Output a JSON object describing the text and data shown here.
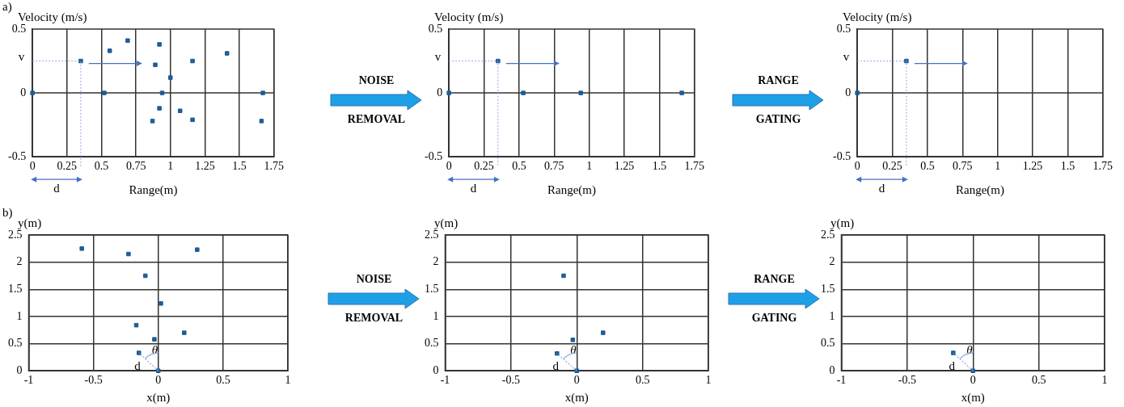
{
  "chart_data": [
    {
      "type": "scatter",
      "xlabel": "Range(m)",
      "ylabel": "Velocity (m/s)",
      "x": [
        0,
        0.35,
        0.52,
        0.56,
        0.69,
        0.92,
        0.89,
        1.0,
        0.94,
        1.16,
        1.41,
        1.67,
        0.92,
        1.07,
        0.87,
        1.16,
        1.66
      ],
      "series": [
        {
          "color": "#1f5c99",
          "values": [
            0,
            0.25,
            0,
            0.33,
            0.41,
            0.38,
            0.22,
            0.12,
            0,
            0.25,
            0.31,
            0,
            -0.12,
            -0.14,
            -0.22,
            -0.21,
            -0.22
          ]
        }
      ],
      "marker": "square",
      "xlim": [
        0,
        1.75
      ],
      "xticks": [
        0,
        0.25,
        0.5,
        0.75,
        1,
        1.25,
        1.5,
        1.75
      ],
      "ylim": [
        -0.5,
        0.5
      ],
      "yticks": [
        -0.5,
        0,
        0.5
      ],
      "grid": "x",
      "ref_lines": [
        {
          "axis": "y",
          "value": 0
        }
      ],
      "annotations": [
        "a)",
        "v",
        "d"
      ]
    },
    {
      "type": "other",
      "annotations": [
        "NOISE",
        "REMOVAL"
      ]
    },
    {
      "type": "scatter",
      "xlabel": "Range(m)",
      "ylabel": "Velocity (m/s)",
      "x": [
        0,
        0.35,
        0.53,
        0.94,
        1.66
      ],
      "series": [
        {
          "color": "#1f5c99",
          "values": [
            0,
            0.25,
            0,
            0,
            0
          ]
        }
      ],
      "marker": "square",
      "xlim": [
        0,
        1.75
      ],
      "xticks": [
        0,
        0.25,
        0.5,
        0.75,
        1,
        1.25,
        1.5,
        1.75
      ],
      "ylim": [
        -0.5,
        0.5
      ],
      "yticks": [
        -0.5,
        0,
        0.5
      ],
      "grid": "x",
      "ref_lines": [
        {
          "axis": "y",
          "value": 0
        }
      ],
      "annotations": [
        "v",
        "d"
      ]
    },
    {
      "type": "other",
      "annotations": [
        "RANGE",
        "GATING"
      ]
    },
    {
      "type": "scatter",
      "xlabel": "Range(m)",
      "ylabel": "Velocity (m/s)",
      "x": [
        0,
        0.35
      ],
      "series": [
        {
          "color": "#1f5c99",
          "values": [
            0,
            0.25
          ]
        }
      ],
      "marker": "square",
      "xlim": [
        0,
        1.75
      ],
      "xticks": [
        0,
        0.25,
        0.5,
        0.75,
        1,
        1.25,
        1.5,
        1.75
      ],
      "ylim": [
        -0.5,
        0.5
      ],
      "yticks": [
        -0.5,
        0,
        0.5
      ],
      "grid": "x",
      "ref_lines": [
        {
          "axis": "y",
          "value": 0
        }
      ],
      "annotations": [
        "v",
        "d"
      ]
    },
    {
      "type": "scatter",
      "xlabel": "x(m)",
      "ylabel": "y(m)",
      "x": [
        -0.59,
        -0.23,
        0.3,
        -0.1,
        0.02,
        -0.17,
        0.2,
        -0.03,
        -0.15,
        0
      ],
      "series": [
        {
          "color": "#1f5c99",
          "values": [
            2.25,
            2.15,
            2.23,
            1.75,
            1.24,
            0.84,
            0.7,
            0.58,
            0.33,
            0
          ]
        }
      ],
      "marker": "square",
      "xlim": [
        -1,
        1
      ],
      "xticks": [
        -1,
        -0.5,
        0,
        0.5,
        1
      ],
      "ylim": [
        0,
        2.5
      ],
      "yticks": [
        0,
        0.5,
        1,
        1.5,
        2,
        2.5
      ],
      "grid": true,
      "annotations": [
        "b)",
        "d",
        "θ"
      ]
    },
    {
      "type": "other",
      "annotations": [
        "NOISE",
        "REMOVAL"
      ]
    },
    {
      "type": "scatter",
      "xlabel": "x(m)",
      "ylabel": "y(m)",
      "x": [
        -0.1,
        0.2,
        -0.03,
        -0.15,
        0
      ],
      "series": [
        {
          "color": "#1f5c99",
          "values": [
            1.75,
            0.7,
            0.57,
            0.32,
            0
          ]
        }
      ],
      "marker": "square",
      "xlim": [
        -1,
        1
      ],
      "xticks": [
        -1,
        -0.5,
        0,
        0.5,
        1
      ],
      "ylim": [
        0,
        2.5
      ],
      "yticks": [
        0,
        0.5,
        1,
        1.5,
        2,
        2.5
      ],
      "grid": true,
      "annotations": [
        "d",
        "θ"
      ]
    },
    {
      "type": "other",
      "annotations": [
        "RANGE",
        "GATING"
      ]
    },
    {
      "type": "scatter",
      "xlabel": "x(m)",
      "ylabel": "y(m)",
      "x": [
        -0.15,
        0
      ],
      "series": [
        {
          "color": "#1f5c99",
          "values": [
            0.33,
            0
          ]
        }
      ],
      "marker": "square",
      "xlim": [
        -1,
        1
      ],
      "xticks": [
        -1,
        -0.5,
        0,
        0.5,
        1
      ],
      "ylim": [
        0,
        2.5
      ],
      "yticks": [
        0,
        0.5,
        1,
        1.5,
        2,
        2.5
      ],
      "grid": true,
      "annotations": [
        "d",
        "θ"
      ]
    }
  ]
}
